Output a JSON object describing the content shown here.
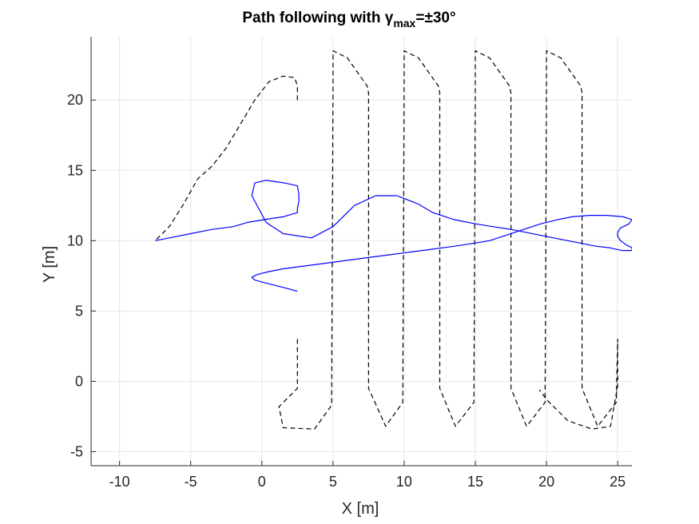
{
  "chart_data": {
    "type": "line",
    "title": {
      "main": "Path following with γ",
      "sub": "max",
      "suffix": "=±30°"
    },
    "xlabel": "X [m]",
    "ylabel": "Y [m]",
    "xlim": [
      -12,
      26
    ],
    "ylim": [
      -6,
      24.5
    ],
    "xticks": [
      -10,
      -5,
      0,
      5,
      10,
      15,
      20,
      25
    ],
    "yticks": [
      -5,
      0,
      5,
      10,
      15,
      20
    ],
    "grid": true,
    "colors": {
      "reference": "#000000",
      "actual": "#0000ff",
      "grid": "#e6e6e6",
      "axis": "#262626"
    },
    "series": [
      {
        "style": "dashed",
        "x": [
          2.5,
          2.5,
          2.3,
          1.5,
          0.5,
          -0.5,
          -1.5,
          -2.5,
          -3.5,
          -4.5,
          -5.5,
          -6.5,
          -7.5
        ],
        "y": [
          20.0,
          21.0,
          21.6,
          21.7,
          21.3,
          20.0,
          18.3,
          16.6,
          15.3,
          14.4,
          12.6,
          11.0,
          10.0
        ],
        "x2": [
          2.5,
          2.5,
          1.2,
          1.5,
          3.7,
          4.9,
          5.0,
          5.0,
          6.0,
          7.4,
          7.5,
          7.5,
          8.7,
          9.9,
          10.0,
          10.0,
          11.0,
          12.4,
          12.5,
          12.5,
          13.6,
          14.9,
          15.0,
          15.0,
          16.0,
          17.4,
          17.5,
          17.5,
          18.6,
          19.9,
          20.0,
          20.0,
          21.0,
          22.4,
          22.5,
          22.5,
          23.6,
          24.9,
          25.0,
          25.0,
          24.5,
          23.2,
          21.5,
          20.0,
          19.5
        ],
        "y2": [
          3.0,
          -0.5,
          -1.8,
          -3.3,
          -3.4,
          -1.7,
          21.0,
          23.5,
          23.0,
          21.0,
          20.5,
          -0.5,
          -3.2,
          -1.5,
          21.0,
          23.5,
          23.0,
          21.0,
          20.5,
          -0.5,
          -3.2,
          -1.5,
          21.0,
          23.5,
          23.0,
          21.0,
          20.5,
          -0.5,
          -3.2,
          -1.5,
          21.0,
          23.5,
          23.0,
          21.0,
          20.5,
          -0.5,
          -3.2,
          -1.5,
          3.0,
          -0.3,
          -3.2,
          -3.4,
          -2.8,
          -1.3,
          -0.6
        ]
      },
      {
        "style": "solid",
        "x": [
          -7.5,
          -6.5,
          -5,
          -3.5,
          -2,
          -1,
          0.2,
          1.5,
          2.5,
          2.5,
          2.6,
          2.6,
          2.5,
          1.6,
          0.3,
          -0.5,
          -0.7,
          0.3,
          1.5,
          3.5,
          5.0,
          6.5,
          8.0,
          9.5,
          11.0,
          12.0,
          13.5,
          15.0,
          16.2,
          17.5,
          18.5,
          19.5,
          20.5,
          21.5,
          22.5,
          23.5,
          24.4,
          25.3,
          26.0,
          26.0,
          25.6,
          25.2,
          25.0,
          25.0,
          25.2,
          25.8,
          26.0,
          25.4,
          24.2,
          23.0,
          21.8,
          20.8,
          19.6,
          18.4,
          17.2,
          16.0,
          14.8,
          13.5,
          12.0,
          10.5,
          9.0,
          7.5,
          6.0,
          4.5,
          3.0,
          1.5,
          0.5,
          -0.3,
          -0.7,
          -0.5,
          0.2,
          1.0,
          1.8,
          2.5
        ],
        "y": [
          10.0,
          10.2,
          10.5,
          10.8,
          11.0,
          11.3,
          11.5,
          11.7,
          12.0,
          12.3,
          12.8,
          13.3,
          13.9,
          14.1,
          14.3,
          14.1,
          13.2,
          11.3,
          10.5,
          10.2,
          11.0,
          12.5,
          13.2,
          13.2,
          12.6,
          12.0,
          11.5,
          11.2,
          11.0,
          10.8,
          10.6,
          10.4,
          10.2,
          10.0,
          9.8,
          9.6,
          9.5,
          9.3,
          9.3,
          9.5,
          9.7,
          10.0,
          10.3,
          10.6,
          10.9,
          11.2,
          11.5,
          11.7,
          11.8,
          11.8,
          11.7,
          11.5,
          11.2,
          10.8,
          10.4,
          10.0,
          9.8,
          9.6,
          9.4,
          9.2,
          9.0,
          8.8,
          8.6,
          8.4,
          8.2,
          8.0,
          7.8,
          7.6,
          7.4,
          7.2,
          7.0,
          6.8,
          6.6,
          6.4
        ]
      }
    ]
  }
}
